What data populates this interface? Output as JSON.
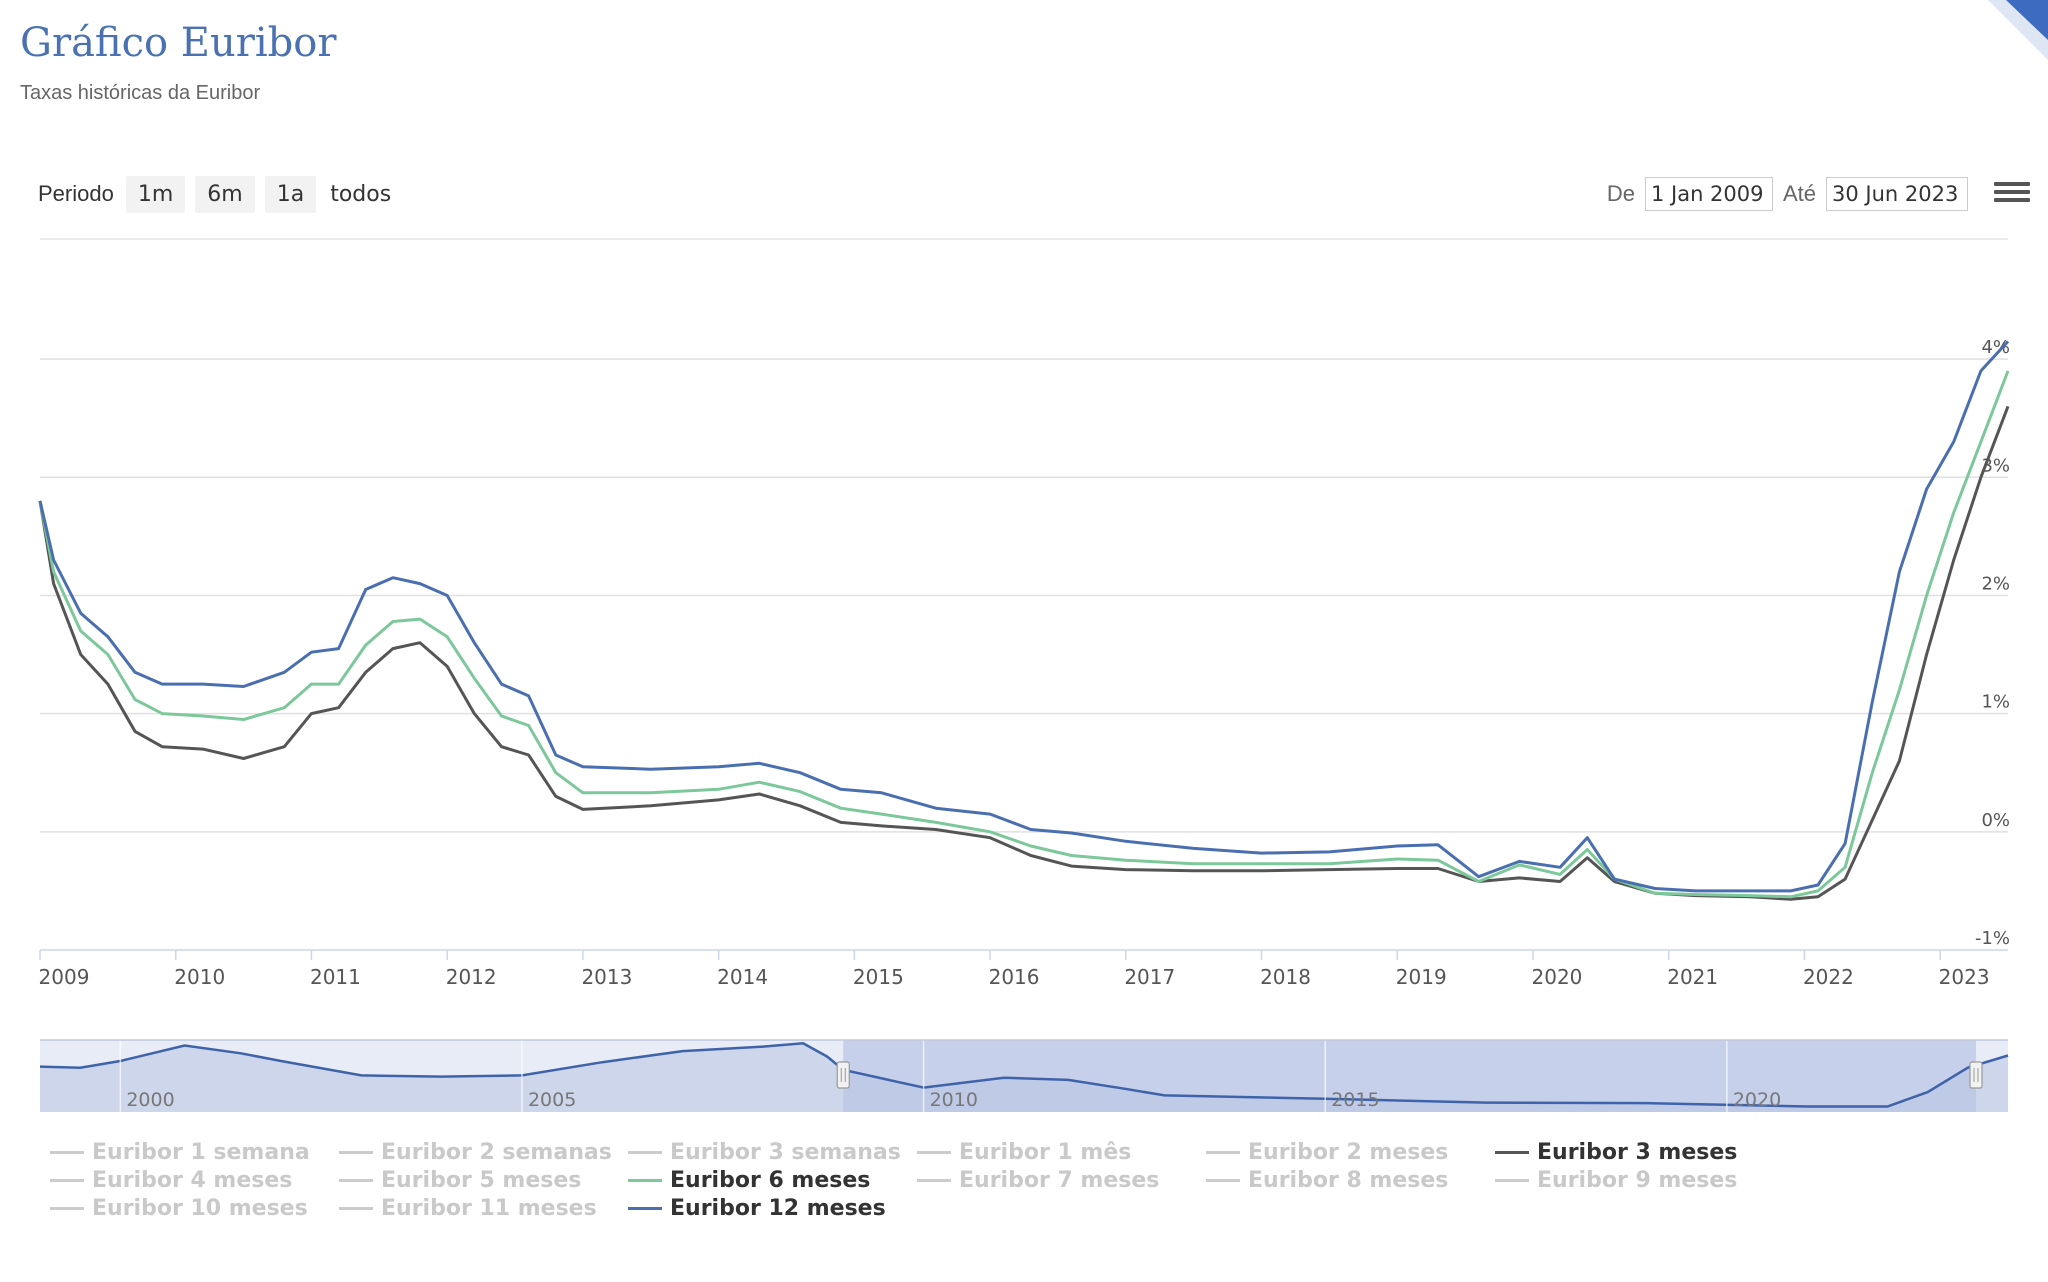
{
  "header": {
    "title": "Gráfico Euribor",
    "subtitle": "Taxas históricas da Euribor"
  },
  "toolbar": {
    "period_label": "Periodo",
    "zoom_buttons": [
      "1m",
      "6m",
      "1a",
      "todos"
    ],
    "from_label": "De",
    "from_value": "1 Jan 2009",
    "to_label": "Até",
    "to_value": "30 Jun 2023",
    "menu_icon": "hamburger-menu-icon"
  },
  "legend": [
    {
      "label": "Euribor 1 semana",
      "visible": false
    },
    {
      "label": "Euribor 2 semanas",
      "visible": false
    },
    {
      "label": "Euribor 3 semanas",
      "visible": false
    },
    {
      "label": "Euribor 1 mês",
      "visible": false
    },
    {
      "label": "Euribor 2 meses",
      "visible": false
    },
    {
      "label": "Euribor 3 meses",
      "visible": true,
      "color": "#555555"
    },
    {
      "label": "Euribor 4 meses",
      "visible": false
    },
    {
      "label": "Euribor 5 meses",
      "visible": false
    },
    {
      "label": "Euribor 6 meses",
      "visible": true,
      "color": "#7cc89a"
    },
    {
      "label": "Euribor 7 meses",
      "visible": false
    },
    {
      "label": "Euribor 8 meses",
      "visible": false
    },
    {
      "label": "Euribor 9 meses",
      "visible": false
    },
    {
      "label": "Euribor 10 meses",
      "visible": false
    },
    {
      "label": "Euribor 11 meses",
      "visible": false
    },
    {
      "label": "Euribor 12 meses",
      "visible": true,
      "color": "#4a6fb0"
    }
  ],
  "chart_data": {
    "type": "line",
    "x_ticks": [
      "2009",
      "2010",
      "2011",
      "2012",
      "2013",
      "2014",
      "2015",
      "2016",
      "2017",
      "2018",
      "2019",
      "2020",
      "2021",
      "2022",
      "2023"
    ],
    "y_ticks": [
      "4%",
      "3%",
      "2%",
      "1%",
      "0%",
      "-1%"
    ],
    "ylim": [
      -1,
      4.5
    ],
    "xlim": [
      2009.0,
      2023.5
    ],
    "grid": true,
    "legend_position": "bottom",
    "series": [
      {
        "name": "Euribor 3 meses",
        "color": "#555555",
        "x": [
          2009.0,
          2009.1,
          2009.3,
          2009.5,
          2009.7,
          2009.9,
          2010.2,
          2010.5,
          2010.8,
          2011.0,
          2011.2,
          2011.4,
          2011.6,
          2011.8,
          2012.0,
          2012.2,
          2012.4,
          2012.6,
          2012.8,
          2013.0,
          2013.5,
          2014.0,
          2014.3,
          2014.6,
          2014.9,
          2015.2,
          2015.6,
          2016.0,
          2016.3,
          2016.6,
          2017.0,
          2017.5,
          2018.0,
          2018.5,
          2019.0,
          2019.3,
          2019.6,
          2019.9,
          2020.2,
          2020.4,
          2020.6,
          2020.9,
          2021.2,
          2021.6,
          2021.9,
          2022.1,
          2022.3,
          2022.5,
          2022.7,
          2022.9,
          2023.1,
          2023.3,
          2023.5
        ],
        "y": [
          2.8,
          2.1,
          1.5,
          1.25,
          0.85,
          0.72,
          0.7,
          0.62,
          0.72,
          1.0,
          1.05,
          1.35,
          1.55,
          1.6,
          1.4,
          1.0,
          0.72,
          0.65,
          0.3,
          0.19,
          0.22,
          0.27,
          0.32,
          0.22,
          0.08,
          0.05,
          0.02,
          -0.05,
          -0.2,
          -0.29,
          -0.32,
          -0.33,
          -0.33,
          -0.32,
          -0.31,
          -0.31,
          -0.42,
          -0.39,
          -0.42,
          -0.22,
          -0.42,
          -0.52,
          -0.54,
          -0.55,
          -0.57,
          -0.55,
          -0.4,
          0.1,
          0.6,
          1.5,
          2.3,
          3.0,
          3.6
        ]
      },
      {
        "name": "Euribor 6 meses",
        "color": "#7cc89a",
        "x": [
          2009.0,
          2009.1,
          2009.3,
          2009.5,
          2009.7,
          2009.9,
          2010.2,
          2010.5,
          2010.8,
          2011.0,
          2011.2,
          2011.4,
          2011.6,
          2011.8,
          2012.0,
          2012.2,
          2012.4,
          2012.6,
          2012.8,
          2013.0,
          2013.5,
          2014.0,
          2014.3,
          2014.6,
          2014.9,
          2015.2,
          2015.6,
          2016.0,
          2016.3,
          2016.6,
          2017.0,
          2017.5,
          2018.0,
          2018.5,
          2019.0,
          2019.3,
          2019.6,
          2019.9,
          2020.2,
          2020.4,
          2020.6,
          2020.9,
          2021.2,
          2021.6,
          2021.9,
          2022.1,
          2022.3,
          2022.5,
          2022.7,
          2022.9,
          2023.1,
          2023.3,
          2023.5
        ],
        "y": [
          2.8,
          2.2,
          1.7,
          1.5,
          1.12,
          1.0,
          0.98,
          0.95,
          1.05,
          1.25,
          1.25,
          1.58,
          1.78,
          1.8,
          1.65,
          1.3,
          0.98,
          0.9,
          0.5,
          0.33,
          0.33,
          0.36,
          0.42,
          0.34,
          0.2,
          0.15,
          0.08,
          0.0,
          -0.12,
          -0.2,
          -0.24,
          -0.27,
          -0.27,
          -0.27,
          -0.23,
          -0.24,
          -0.42,
          -0.28,
          -0.36,
          -0.15,
          -0.4,
          -0.52,
          -0.53,
          -0.54,
          -0.55,
          -0.5,
          -0.3,
          0.5,
          1.2,
          2.0,
          2.7,
          3.3,
          3.9
        ]
      },
      {
        "name": "Euribor 12 meses",
        "color": "#4a6fb0",
        "x": [
          2009.0,
          2009.1,
          2009.3,
          2009.5,
          2009.7,
          2009.9,
          2010.2,
          2010.5,
          2010.8,
          2011.0,
          2011.2,
          2011.4,
          2011.6,
          2011.8,
          2012.0,
          2012.2,
          2012.4,
          2012.6,
          2012.8,
          2013.0,
          2013.5,
          2014.0,
          2014.3,
          2014.6,
          2014.9,
          2015.2,
          2015.6,
          2016.0,
          2016.3,
          2016.6,
          2017.0,
          2017.5,
          2018.0,
          2018.5,
          2019.0,
          2019.3,
          2019.6,
          2019.9,
          2020.2,
          2020.4,
          2020.6,
          2020.9,
          2021.2,
          2021.6,
          2021.9,
          2022.1,
          2022.3,
          2022.5,
          2022.7,
          2022.9,
          2023.1,
          2023.3,
          2023.5
        ],
        "y": [
          2.8,
          2.3,
          1.85,
          1.65,
          1.35,
          1.25,
          1.25,
          1.23,
          1.35,
          1.52,
          1.55,
          2.05,
          2.15,
          2.1,
          2.0,
          1.6,
          1.25,
          1.15,
          0.65,
          0.55,
          0.53,
          0.55,
          0.58,
          0.5,
          0.36,
          0.33,
          0.2,
          0.15,
          0.02,
          -0.01,
          -0.08,
          -0.14,
          -0.18,
          -0.17,
          -0.12,
          -0.11,
          -0.38,
          -0.25,
          -0.3,
          -0.05,
          -0.4,
          -0.48,
          -0.5,
          -0.5,
          -0.5,
          -0.45,
          -0.1,
          1.1,
          2.2,
          2.9,
          3.3,
          3.9,
          4.15
        ]
      }
    ],
    "navigator": {
      "x_ticks": [
        "2000",
        "2005",
        "2010",
        "2015",
        "2020"
      ],
      "xlim": [
        1999,
        2023.5
      ],
      "selected_range": [
        2009.0,
        2023.5
      ],
      "x": [
        1999.0,
        1999.5,
        2000.0,
        2000.8,
        2001.5,
        2002.0,
        2003.0,
        2004.0,
        2005.0,
        2006.0,
        2007.0,
        2008.0,
        2008.5,
        2008.8,
        2009.0,
        2010.0,
        2011.0,
        2011.8,
        2012.5,
        2013.0,
        2015.0,
        2017.0,
        2019.0,
        2021.0,
        2022.0,
        2022.5,
        2023.0,
        2023.5
      ],
      "y": [
        3.1,
        3.0,
        3.6,
        5.0,
        4.3,
        3.6,
        2.3,
        2.2,
        2.3,
        3.5,
        4.5,
        4.9,
        5.2,
        4.0,
        2.8,
        1.2,
        2.1,
        1.9,
        1.1,
        0.5,
        0.2,
        -0.15,
        -0.2,
        -0.5,
        -0.5,
        0.8,
        3.0,
        4.1
      ]
    }
  }
}
